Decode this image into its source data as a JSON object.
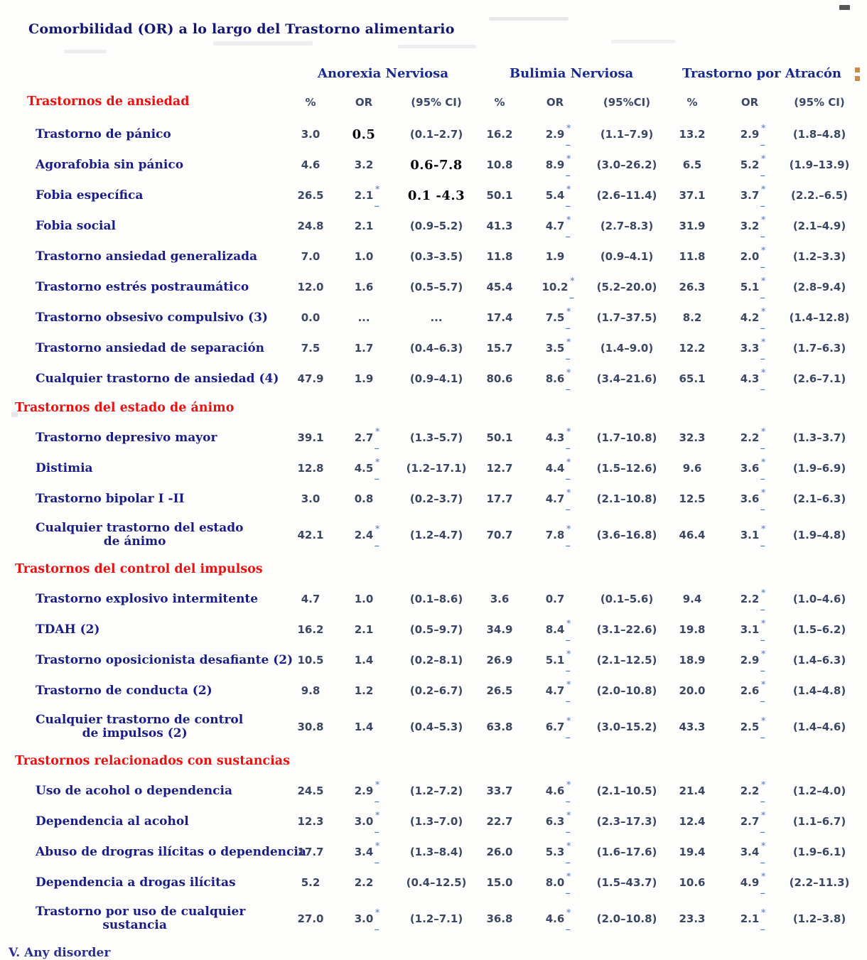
{
  "title": "Comorbilidad (OR) a lo largo del Trastorno alimentario",
  "groups": [
    {
      "label": "Anorexia Nerviosa"
    },
    {
      "label": "Bulimia Nerviosa"
    },
    {
      "label": "Trastorno por Atracón"
    }
  ],
  "columns": [
    "%",
    "OR",
    "(95% CI)",
    "%",
    "OR",
    "(95%CI)",
    "%",
    "OR",
    "(95% CI)"
  ],
  "footnote": "V. Any disorder",
  "colors": {
    "title_navy": "#14176f",
    "label_navy": "#1b1d86",
    "group_navy": "#182a8e",
    "section_red": "#e61312",
    "value_slate": "#3b4660",
    "edited_black": "#050505",
    "star_blue": "#7b93c6",
    "underscore_blue": "#4a7cc8",
    "artifact_orange": "#c97e2e"
  },
  "sections": [
    {
      "label": "Trastornos de ansiedad",
      "inline_header": true,
      "rows": [
        {
          "label": "Trastorno de pánico",
          "cells": [
            "3.0",
            {
              "t": "0.5",
              "edit": true
            },
            "(0.1–2.7)",
            "16.2",
            {
              "t": "2.9",
              "star": true
            },
            "(1.1–7.9)",
            "13.2",
            {
              "t": "2.9",
              "star": true
            },
            "(1.8–4.8)"
          ]
        },
        {
          "label": "Agorafobia sin pánico",
          "cells": [
            "4.6",
            "3.2",
            {
              "t": "0.6-7.8",
              "edit": true
            },
            "10.8",
            {
              "t": "8.9",
              "star": true
            },
            "(3.0–26.2)",
            "6.5",
            {
              "t": "5.2",
              "star": true
            },
            "(1.9–13.9)"
          ]
        },
        {
          "label": "Fobia específica",
          "cells": [
            "26.5",
            {
              "t": "2.1",
              "star": true
            },
            {
              "t": "0.1 -4.3",
              "edit": true
            },
            "50.1",
            {
              "t": "5.4",
              "star": true
            },
            "(2.6–11.4)",
            "37.1",
            {
              "t": "3.7",
              "star": true
            },
            "(2.2.–6.5)"
          ]
        },
        {
          "label": "Fobia social",
          "cells": [
            "24.8",
            "2.1",
            "(0.9–5.2)",
            "41.3",
            {
              "t": "4.7",
              "star": true
            },
            "(2.7–8.3)",
            "31.9",
            {
              "t": "3.2",
              "star": true
            },
            "(2.1–4.9)"
          ]
        },
        {
          "label": "Trastorno ansiedad generalizada",
          "cells": [
            "7.0",
            "1.0",
            "(0.3–3.5)",
            "11.8",
            "1.9",
            "(0.9–4.1)",
            "11.8",
            {
              "t": "2.0",
              "star": true
            },
            "(1.2–3.3)"
          ]
        },
        {
          "label": "Trastorno estrés postraumático",
          "cells": [
            "12.0",
            "1.6",
            "(0.5–5.7)",
            "45.4",
            {
              "t": "10.2",
              "star": true
            },
            "(5.2–20.0)",
            "26.3",
            {
              "t": "5.1",
              "star": true
            },
            "(2.8–9.4)"
          ]
        },
        {
          "label": "Trastorno obsesivo compulsivo (3)",
          "cells": [
            "0.0",
            "...",
            "...",
            "17.4",
            {
              "t": "7.5",
              "star": true
            },
            "(1.7–37.5)",
            "8.2",
            {
              "t": "4.2",
              "star": true
            },
            "(1.4–12.8)"
          ]
        },
        {
          "label": "Trastorno ansiedad de separación",
          "cells": [
            "7.5",
            "1.7",
            "(0.4–6.3)",
            "15.7",
            {
              "t": "3.5",
              "star": true
            },
            "(1.4–9.0)",
            "12.2",
            {
              "t": "3.3",
              "star": true
            },
            "(1.7–6.3)"
          ]
        },
        {
          "label": "Cualquier trastorno de ansiedad (4)",
          "cells": [
            "47.9",
            "1.9",
            "(0.9–4.1)",
            "80.6",
            {
              "t": "8.6",
              "star": true
            },
            "(3.4–21.6)",
            "65.1",
            {
              "t": "4.3",
              "star": true
            },
            "(2.6–7.1)"
          ]
        }
      ]
    },
    {
      "label": "Trastornos del estado de ánimo",
      "rows": [
        {
          "label": "Trastorno depresivo mayor",
          "cells": [
            "39.1",
            {
              "t": "2.7",
              "star": true
            },
            "(1.3–5.7)",
            "50.1",
            {
              "t": "4.3",
              "star": true
            },
            "(1.7–10.8)",
            "32.3",
            {
              "t": "2.2",
              "star": true
            },
            "(1.3–3.7)"
          ]
        },
        {
          "label": "Distimia",
          "cells": [
            "12.8",
            {
              "t": "4.5",
              "star": true
            },
            "(1.2–17.1)",
            "12.7",
            {
              "t": "4.4",
              "star": true
            },
            "(1.5–12.6)",
            "9.6",
            {
              "t": "3.6",
              "star": true
            },
            "(1.9–6.9)"
          ]
        },
        {
          "label": "Trastorno bipolar I -II",
          "cells": [
            "3.0",
            "0.8",
            "(0.2–3.7)",
            "17.7",
            {
              "t": "4.7",
              "star": true
            },
            "(2.1–10.8)",
            "12.5",
            {
              "t": "3.6",
              "star": true
            },
            "(2.1–6.3)"
          ]
        },
        {
          "label": "Cualquier trastorno del estado",
          "label2": "de ánimo",
          "cells": [
            "42.1",
            {
              "t": "2.4",
              "star": true
            },
            "(1.2–4.7)",
            "70.7",
            {
              "t": "7.8",
              "star": true
            },
            "(3.6–16.8)",
            "46.4",
            {
              "t": "3.1",
              "star": true
            },
            "(1.9–4.8)"
          ]
        }
      ]
    },
    {
      "label": "Trastornos del control del impulsos",
      "rows": [
        {
          "label": "Trastorno explosivo intermitente",
          "cells": [
            "4.7",
            "1.0",
            "(0.1–8.6)",
            "3.6",
            "0.7",
            "(0.1–5.6)",
            "9.4",
            {
              "t": "2.2",
              "star": true
            },
            "(1.0–4.6)"
          ]
        },
        {
          "label": "TDAH (2)",
          "cells": [
            "16.2",
            "2.1",
            "(0.5–9.7)",
            "34.9",
            {
              "t": "8.4",
              "star": true
            },
            "(3.1–22.6)",
            "19.8",
            {
              "t": "3.1",
              "star": true
            },
            "(1.5–6.2)"
          ]
        },
        {
          "label": "Trastorno oposicionista desafiante (2)",
          "cells": [
            "10.5",
            "1.4",
            "(0.2–8.1)",
            "26.9",
            {
              "t": "5.1",
              "star": true
            },
            "(2.1–12.5)",
            "18.9",
            {
              "t": "2.9",
              "star": true
            },
            "(1.4–6.3)"
          ]
        },
        {
          "label": "Trastorno de conducta (2)",
          "cells": [
            "9.8",
            "1.2",
            "(0.2–6.7)",
            "26.5",
            {
              "t": "4.7",
              "star": true
            },
            "(2.0–10.8)",
            "20.0",
            {
              "t": "2.6",
              "star": true
            },
            "(1.4–4.8)"
          ]
        },
        {
          "label": "Cualquier trastorno de control",
          "label2": "de impulsos (2)",
          "cells": [
            "30.8",
            "1.4",
            "(0.4–5.3)",
            "63.8",
            {
              "t": "6.7",
              "star": true
            },
            "(3.0–15.2)",
            "43.3",
            {
              "t": "2.5",
              "star": true
            },
            "(1.4–4.6)"
          ]
        }
      ]
    },
    {
      "label": "Trastornos relacionados con sustancias",
      "rows": [
        {
          "label": "Uso de acohol o dependencia",
          "cells": [
            "24.5",
            {
              "t": "2.9",
              "star": true
            },
            "(1.2–7.2)",
            "33.7",
            {
              "t": "4.6",
              "star": true
            },
            "(2.1–10.5)",
            "21.4",
            {
              "t": "2.2",
              "star": true
            },
            "(1.2–4.0)"
          ]
        },
        {
          "label": "Dependencia al acohol",
          "cells": [
            "12.3",
            {
              "t": "3.0",
              "star": true
            },
            "(1.3–7.0)",
            "22.7",
            {
              "t": "6.3",
              "star": true
            },
            "(2.3–17.3)",
            "12.4",
            {
              "t": "2.7",
              "star": true
            },
            "(1.1–6.7)"
          ]
        },
        {
          "label": "Abuso de drogras ilícitas o dependencia",
          "cells": [
            "17.7",
            {
              "t": "3.4",
              "star": true
            },
            "(1.3–8.4)",
            "26.0",
            {
              "t": "5.3",
              "star": true
            },
            "(1.6–17.6)",
            "19.4",
            {
              "t": "3.4",
              "star": true
            },
            "(1.9–6.1)"
          ]
        },
        {
          "label": "Dependencia a drogas ilícitas",
          "cells": [
            "5.2",
            "2.2",
            "(0.4–12.5)",
            "15.0",
            {
              "t": "8.0",
              "star": true
            },
            "(1.5–43.7)",
            "10.6",
            {
              "t": "4.9",
              "star": true
            },
            "(2.2–11.3)"
          ]
        },
        {
          "label": "Trastorno por uso de cualquier",
          "label2": "sustancia",
          "cells": [
            "27.0",
            {
              "t": "3.0",
              "star": true
            },
            "(1.2–7.1)",
            "36.8",
            {
              "t": "4.6",
              "star": true
            },
            "(2.0–10.8)",
            "23.3",
            {
              "t": "2.1",
              "star": true
            },
            "(1.2–3.8)"
          ]
        }
      ]
    }
  ]
}
